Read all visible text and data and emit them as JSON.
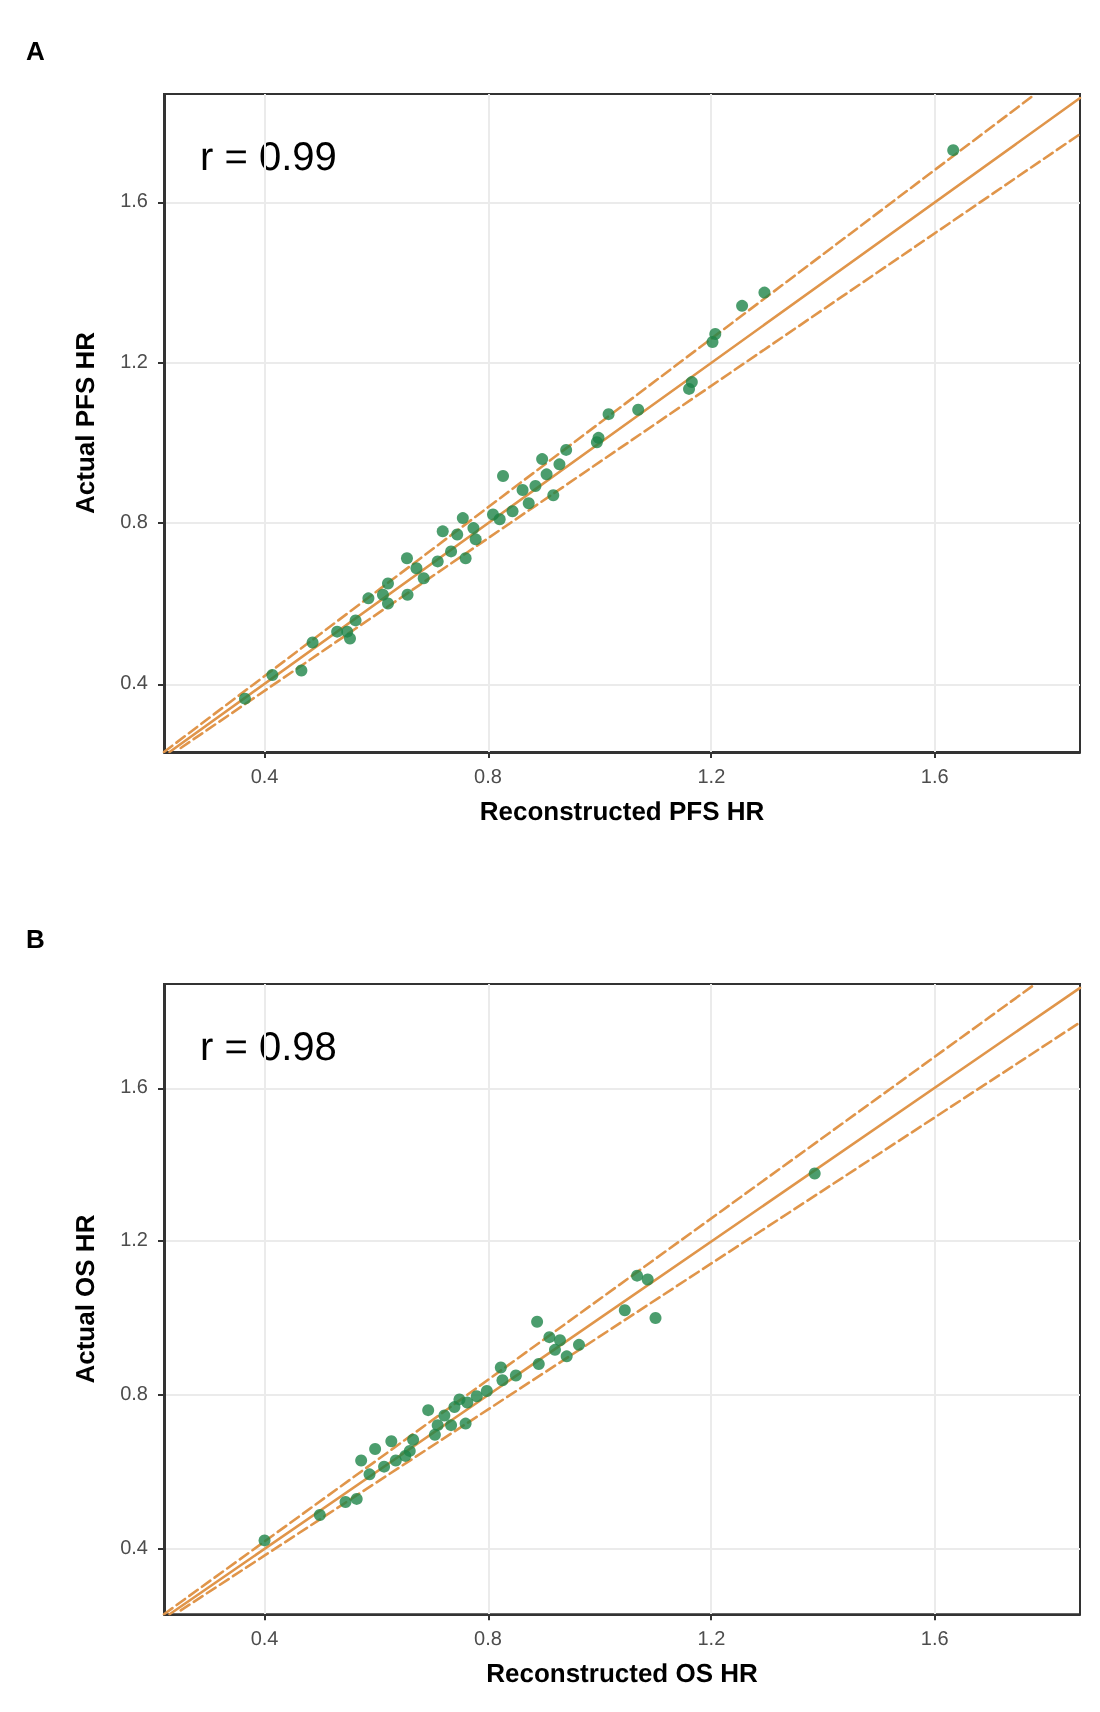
{
  "chart_data": [
    {
      "type": "scatter",
      "title": "A",
      "xlabel": "Reconstructed PFS HR",
      "ylabel": "Actual PFS HR",
      "annotations": [
        "r = 0.99"
      ],
      "xlim": [
        0.22,
        1.86
      ],
      "ylim": [
        0.23,
        1.87
      ],
      "xticks": [
        0.4,
        0.8,
        1.2,
        1.6
      ],
      "yticks": [
        0.4,
        0.8,
        1.2,
        1.6
      ],
      "grid": true,
      "series": [
        {
          "type": "line",
          "marker": "none",
          "color": "#e0954a",
          "line_style": "solid",
          "x": [
            0.23,
            1.86
          ],
          "values": [
            0.23,
            1.86
          ]
        },
        {
          "type": "line",
          "marker": "none",
          "color": "#e0954a",
          "line_style": "dashed",
          "x": [
            0.22,
            1.78
          ],
          "values": [
            0.23,
            1.87
          ]
        },
        {
          "type": "line",
          "marker": "none",
          "color": "#e0954a",
          "line_style": "dashed",
          "x": [
            0.25,
            1.86
          ],
          "values": [
            0.24,
            1.77
          ]
        },
        {
          "marker": "circle",
          "color": "#1e8449",
          "x": [
            1.633,
            1.295,
            1.255,
            1.207,
            1.202,
            1.165,
            1.16,
            1.069,
            1.016,
            0.998,
            0.995,
            0.94,
            0.897,
            0.928,
            0.905,
            0.827,
            0.885,
            0.862,
            0.917,
            0.873,
            0.844,
            0.809,
            0.821,
            0.755,
            0.719,
            0.745,
            0.774,
            0.778,
            0.734,
            0.76,
            0.71,
            0.655,
            0.672,
            0.685,
            0.656,
            0.621,
            0.586,
            0.612,
            0.621,
            0.563,
            0.53,
            0.548,
            0.553,
            0.486,
            0.414,
            0.466,
            0.365
          ],
          "values": [
            1.73,
            1.375,
            1.342,
            1.272,
            1.252,
            1.152,
            1.135,
            1.083,
            1.072,
            1.013,
            1.002,
            0.983,
            0.96,
            0.947,
            0.922,
            0.918,
            0.893,
            0.883,
            0.87,
            0.85,
            0.83,
            0.822,
            0.81,
            0.813,
            0.78,
            0.772,
            0.788,
            0.76,
            0.73,
            0.713,
            0.705,
            0.713,
            0.688,
            0.663,
            0.622,
            0.65,
            0.613,
            0.622,
            0.6,
            0.558,
            0.53,
            0.53,
            0.513,
            0.503,
            0.422,
            0.433,
            0.363
          ]
        }
      ]
    },
    {
      "type": "scatter",
      "title": "B",
      "xlabel": "Reconstructed OS HR",
      "ylabel": "Actual OS HR",
      "annotations": [
        "r = 0.98"
      ],
      "xlim": [
        0.22,
        1.86
      ],
      "ylim": [
        0.23,
        1.87
      ],
      "xticks": [
        0.4,
        0.8,
        1.2,
        1.6
      ],
      "yticks": [
        0.4,
        0.8,
        1.2,
        1.6
      ],
      "grid": true,
      "series": [
        {
          "type": "line",
          "marker": "none",
          "color": "#e0954a",
          "line_style": "solid",
          "x": [
            0.23,
            1.86
          ],
          "values": [
            0.23,
            1.86
          ]
        },
        {
          "type": "line",
          "marker": "none",
          "color": "#e0954a",
          "line_style": "dashed",
          "x": [
            0.22,
            1.78
          ],
          "values": [
            0.23,
            1.87
          ]
        },
        {
          "type": "line",
          "marker": "none",
          "color": "#e0954a",
          "line_style": "dashed",
          "x": [
            0.25,
            1.86
          ],
          "values": [
            0.24,
            1.77
          ]
        },
        {
          "marker": "circle",
          "color": "#1e8449",
          "x": [
            1.385,
            1.067,
            1.086,
            1.045,
            1.1,
            0.888,
            0.91,
            0.929,
            0.963,
            0.92,
            0.891,
            0.941,
            0.823,
            0.85,
            0.826,
            0.798,
            0.78,
            0.763,
            0.749,
            0.693,
            0.74,
            0.722,
            0.71,
            0.734,
            0.76,
            0.705,
            0.666,
            0.627,
            0.598,
            0.573,
            0.66,
            0.652,
            0.635,
            0.614,
            0.588,
            0.565,
            0.545,
            0.499,
            0.4
          ],
          "values": [
            1.377,
            1.111,
            1.101,
            1.021,
            1.001,
            0.991,
            0.951,
            0.943,
            0.931,
            0.918,
            0.881,
            0.901,
            0.872,
            0.851,
            0.839,
            0.811,
            0.797,
            0.781,
            0.789,
            0.761,
            0.769,
            0.747,
            0.722,
            0.722,
            0.726,
            0.697,
            0.684,
            0.68,
            0.66,
            0.63,
            0.655,
            0.642,
            0.63,
            0.614,
            0.594,
            0.53,
            0.522,
            0.488,
            0.422
          ]
        }
      ]
    }
  ]
}
